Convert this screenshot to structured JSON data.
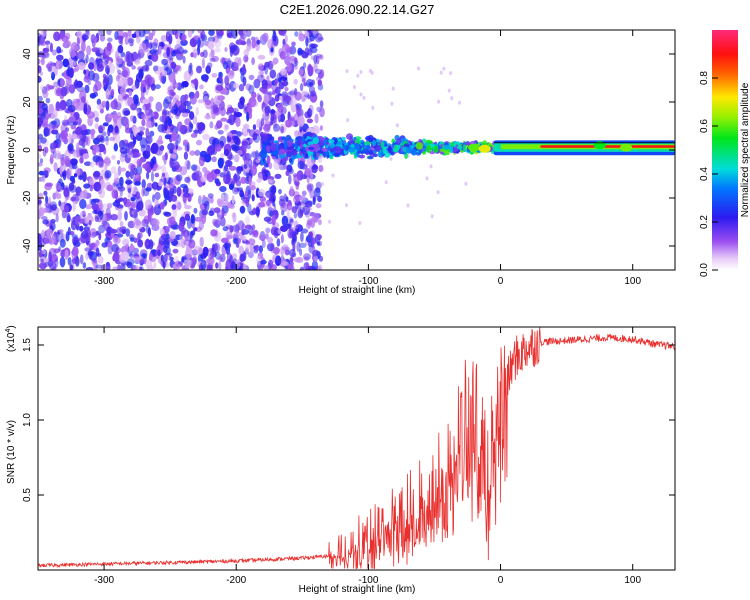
{
  "title": "C2E1.2026.090.22.14.G27",
  "colors": {
    "snr_line": "#e8302f",
    "axis": "#000000"
  },
  "chart_data": [
    {
      "type": "heatmap",
      "name": "spectrogram",
      "xlabel": "Height of straight line (km)",
      "ylabel": "Frequency (Hz)",
      "xlim": [
        -350,
        132
      ],
      "ylim": [
        -50,
        50
      ],
      "xticks": [
        -300,
        -200,
        -100,
        0,
        100
      ],
      "yticks": [
        -40,
        -20,
        0,
        20,
        40
      ],
      "grid": false,
      "colorbar": {
        "label": "Normalized spectral amplitude",
        "range": [
          0,
          1
        ],
        "ticks": [
          "0.0",
          "0.2",
          "0.4",
          "0.6",
          "0.8"
        ],
        "tick_values": [
          0.0,
          0.2,
          0.4,
          0.6,
          0.8
        ],
        "colormap": "rainbow (white-violet-blue-cyan-green-yellow-red-magenta)"
      },
      "description_regions": [
        {
          "x_range": [
            -350,
            -135
          ],
          "y_range": [
            -50,
            50
          ],
          "amplitude": [
            0.05,
            0.25
          ],
          "pattern": "broadband noise"
        },
        {
          "x_range": [
            -180,
            0
          ],
          "y_range": [
            -8,
            8
          ],
          "amplitude": [
            0.2,
            0.6
          ],
          "pattern": "signal emerging near 0 Hz"
        },
        {
          "x_range": [
            0,
            132
          ],
          "y_range": [
            -2,
            3
          ],
          "amplitude": [
            0.6,
            1.0
          ],
          "pattern": "narrow carrier near 1-2 Hz"
        }
      ]
    },
    {
      "type": "line",
      "name": "snr",
      "xlabel": "Height of straight line (km)",
      "ylabel": "SNR (10 * v/v)",
      "multiplier_label": "(x10",
      "multiplier_exponent": "4",
      "multiplier_close": ")",
      "xlim": [
        -350,
        132
      ],
      "ylim": [
        0,
        1.62
      ],
      "xticks": [
        -300,
        -200,
        -100,
        0,
        100
      ],
      "yticks": [
        0.5,
        1.0,
        1.5
      ],
      "ytick_labels": [
        "0.5",
        "1.0",
        "1.5"
      ],
      "grid": false,
      "series": [
        {
          "name": "SNR",
          "x": [
            -350,
            -300,
            -250,
            -200,
            -150,
            -120,
            -100,
            -80,
            -60,
            -40,
            -30,
            -20,
            -10,
            0,
            10,
            20,
            30,
            50,
            80,
            100,
            120,
            132
          ],
          "y": [
            0.03,
            0.04,
            0.05,
            0.06,
            0.08,
            0.1,
            0.18,
            0.3,
            0.4,
            0.6,
            0.9,
            1.1,
            0.5,
            1.1,
            1.4,
            1.48,
            1.52,
            1.53,
            1.55,
            1.54,
            1.5,
            1.49
          ]
        }
      ]
    }
  ]
}
